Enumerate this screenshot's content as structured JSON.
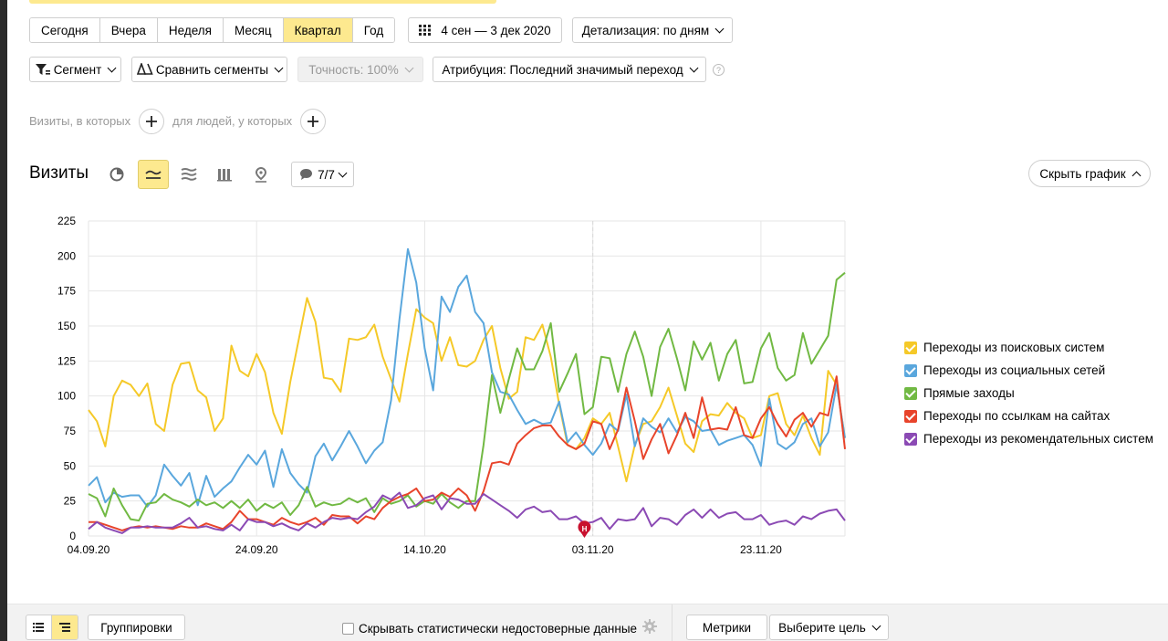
{
  "period_tabs": [
    "Сегодня",
    "Вчера",
    "Неделя",
    "Месяц",
    "Квартал",
    "Год"
  ],
  "active_period": "Квартал",
  "date_range": "4 сен — 3 дек 2020",
  "detail_label": "Детализация: по дням",
  "segment_label": "Сегмент",
  "compare_label": "Сравнить сегменты",
  "accuracy_label": "Точность: 100%",
  "attribution_label": "Атрибуция: Последний значимый переход",
  "help_mark": "?",
  "filter": {
    "visits_text": "Визиты, в которых",
    "people_text": "для людей, у которых"
  },
  "report_title": "Визиты",
  "notes_count": "7/7",
  "hide_chart_label": "Скрыть график",
  "bottom": {
    "groupings_label": "Группировки",
    "hide_unreliable_label": "Скрывать статистически недостоверные данные",
    "metrics_label": "Метрики",
    "goal_label": "Выберите цель"
  },
  "marker_label": "Н",
  "chart_data": {
    "type": "line",
    "x_ticks": [
      "04.09.20",
      "24.09.20",
      "14.10.20",
      "03.11.20",
      "23.11.20"
    ],
    "x_start": "04.09.20",
    "y_ticks": [
      0,
      25,
      50,
      75,
      100,
      125,
      150,
      175,
      200,
      225
    ],
    "ylim": [
      0,
      225
    ],
    "grid": true,
    "legend_position": "right",
    "series": [
      {
        "name": "Переходы из поисковых систем",
        "color": "#f5c928",
        "values": [
          90,
          82,
          64,
          100,
          111,
          108,
          100,
          109,
          80,
          75,
          108,
          123,
          124,
          104,
          99,
          75,
          84,
          136,
          118,
          114,
          130,
          117,
          88,
          73,
          110,
          140,
          170,
          153,
          113,
          112,
          103,
          141,
          140,
          142,
          151,
          128,
          112,
          96,
          130,
          162,
          156,
          152,
          125,
          142,
          122,
          121,
          125,
          140,
          150,
          120,
          98,
          103,
          142,
          140,
          151,
          128,
          94,
          65,
          62,
          70,
          84,
          80,
          88,
          64,
          39,
          65,
          80,
          82,
          92,
          106,
          86,
          66,
          60,
          82,
          87,
          86,
          95,
          88,
          84,
          70,
          72,
          100,
          102,
          80,
          72,
          86,
          70,
          58,
          118,
          108,
          70
        ]
      },
      {
        "name": "Переходы из социальных сетей",
        "color": "#5aa7dd",
        "values": [
          36,
          42,
          24,
          31,
          28,
          29,
          29,
          21,
          29,
          51,
          43,
          36,
          45,
          22,
          43,
          28,
          34,
          39,
          49,
          58,
          51,
          61,
          35,
          62,
          45,
          37,
          31,
          57,
          66,
          54,
          64,
          75,
          64,
          52,
          61,
          67,
          97,
          155,
          205,
          181,
          134,
          104,
          171,
          160,
          178,
          186,
          160,
          152,
          117,
          103,
          101,
          90,
          80,
          83,
          80,
          81,
          96,
          67,
          74,
          65,
          58,
          66,
          80,
          75,
          101,
          64,
          84,
          78,
          74,
          84,
          74,
          85,
          82,
          75,
          76,
          65,
          68,
          70,
          72,
          65,
          50,
          98,
          66,
          62,
          67,
          80,
          84,
          64,
          74,
          108,
          70
        ]
      },
      {
        "name": "Прямые заходы",
        "color": "#71b943",
        "values": [
          30,
          27,
          14,
          34,
          22,
          12,
          11,
          23,
          24,
          30,
          26,
          24,
          21,
          26,
          22,
          24,
          20,
          25,
          20,
          26,
          18,
          23,
          20,
          24,
          15,
          22,
          35,
          21,
          24,
          22,
          23,
          27,
          24,
          27,
          17,
          27,
          23,
          25,
          29,
          21,
          25,
          23,
          30,
          24,
          20,
          25,
          25,
          65,
          115,
          88,
          112,
          134,
          119,
          119,
          132,
          152,
          103,
          116,
          130,
          87,
          92,
          128,
          127,
          103,
          130,
          146,
          128,
          100,
          135,
          148,
          127,
          104,
          139,
          126,
          138,
          111,
          130,
          140,
          109,
          110,
          134,
          145,
          120,
          111,
          115,
          145,
          123,
          133,
          143,
          183,
          188
        ]
      },
      {
        "name": "Переходы по ссылкам на сайтах",
        "color": "#e8442b",
        "values": [
          10,
          10,
          8,
          6,
          4,
          6,
          7,
          6,
          7,
          6,
          5,
          7,
          6,
          6,
          9,
          7,
          5,
          10,
          18,
          12,
          12,
          10,
          8,
          13,
          10,
          8,
          10,
          13,
          8,
          15,
          14,
          14,
          9,
          14,
          12,
          20,
          25,
          28,
          30,
          34,
          25,
          26,
          31,
          28,
          34,
          29,
          18,
          32,
          52,
          53,
          51,
          66,
          72,
          77,
          79,
          79,
          71,
          65,
          62,
          66,
          82,
          80,
          62,
          76,
          106,
          82,
          55,
          69,
          80,
          59,
          72,
          88,
          70,
          99,
          76,
          77,
          76,
          92,
          72,
          70,
          84,
          92,
          80,
          71,
          83,
          88,
          78,
          88,
          86,
          114,
          62
        ]
      },
      {
        "name": "Переходы из рекомендательных систем",
        "color": "#8b4ab4",
        "values": [
          5,
          10,
          6,
          4,
          2,
          6,
          6,
          7,
          6,
          6,
          6,
          9,
          13,
          6,
          7,
          5,
          4,
          8,
          4,
          12,
          10,
          10,
          7,
          9,
          6,
          4,
          9,
          6,
          10,
          13,
          12,
          13,
          12,
          17,
          21,
          29,
          26,
          31,
          20,
          22,
          27,
          29,
          19,
          27,
          26,
          23,
          23,
          30,
          26,
          22,
          18,
          13,
          19,
          21,
          17,
          18,
          12,
          12,
          14,
          9,
          10,
          13,
          5,
          12,
          11,
          12,
          20,
          7,
          13,
          12,
          8,
          15,
          19,
          13,
          19,
          13,
          16,
          17,
          12,
          12,
          15,
          8,
          10,
          11,
          8,
          14,
          12,
          16,
          18,
          19,
          11
        ]
      }
    ]
  }
}
